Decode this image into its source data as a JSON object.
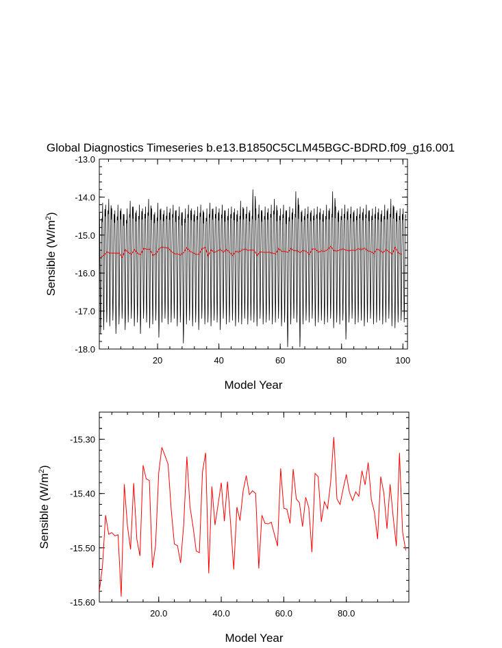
{
  "title": "Global Diagnostics Timeseries b.e13.B1850C5CLM45BGC-BDRD.f09_g16.001",
  "chart_data": [
    {
      "type": "line",
      "xlabel": "Model Year",
      "ylabel": "Sensible (W/m",
      "ylabel_sup": "2",
      "ylabel_end": ")",
      "xlim": [
        1,
        101.5
      ],
      "ylim": [
        -18.0,
        -13.0
      ],
      "xticks": [
        20,
        40,
        60,
        80,
        100
      ],
      "xtick_labels": [
        "20",
        "40",
        "60",
        "80",
        "100"
      ],
      "yticks": [
        -18.0,
        -17.0,
        -16.0,
        -15.0,
        -14.0,
        -13.0
      ],
      "ytick_labels": [
        "-18.0",
        "-17.0",
        "-16.0",
        "-15.0",
        "-14.0",
        "-13.0"
      ],
      "series": [
        {
          "color": "#000000",
          "description": "monthly values, annual cycle",
          "monthly_max": [
            -14.4,
            -14.15,
            -14.2,
            -14.05,
            -14.3,
            -14.35,
            -14.2,
            -14.3,
            -14.45,
            -14.3,
            -14.1,
            -14.25,
            -14.35,
            -14.2,
            -14.3,
            -14.25,
            -14.05,
            -14.3,
            -14.4,
            -14.15,
            -14.3,
            -14.35,
            -14.25,
            -14.3,
            -14.2,
            -14.35,
            -14.25,
            -14.4,
            -14.3,
            -14.2,
            -14.3,
            -14.35,
            -14.25,
            -14.2,
            -14.4,
            -14.3,
            -14.15,
            -14.3,
            -14.25,
            -14.3,
            -14.2,
            -14.35,
            -14.3,
            -14.25,
            -14.3,
            -14.35,
            -14.1,
            -14.3,
            -14.25,
            -14.35,
            -13.8,
            -14.3,
            -14.2,
            -14.35,
            -14.25,
            -14.3,
            -14.2,
            -14.05,
            -14.35,
            -14.3,
            -14.2,
            -14.35,
            -14.25,
            -14.3,
            -13.85,
            -14.2,
            -14.35,
            -14.3,
            -14.25,
            -14.35,
            -14.3,
            -14.25,
            -14.3,
            -14.35,
            -14.2,
            -14.3,
            -13.85,
            -14.25,
            -14.35,
            -14.3,
            -14.2,
            -14.3,
            -14.25,
            -14.35,
            -14.3,
            -14.25,
            -14.3,
            -14.2,
            -14.35,
            -14.3,
            -14.25,
            -14.3,
            -14.35,
            -14.2,
            -14.3,
            -14.05,
            -14.25,
            -14.35,
            -14.3,
            -14.3
          ],
          "monthly_min": [
            -17.6,
            -17.5,
            -17.3,
            -17.4,
            -17.25,
            -17.6,
            -17.35,
            -17.2,
            -17.5,
            -17.3,
            -17.2,
            -17.4,
            -17.3,
            -17.6,
            -17.2,
            -17.3,
            -17.45,
            -17.35,
            -17.25,
            -17.7,
            -17.3,
            -17.2,
            -17.35,
            -17.3,
            -17.2,
            -17.4,
            -17.3,
            -17.85,
            -17.35,
            -17.25,
            -17.4,
            -17.3,
            -17.5,
            -17.2,
            -17.35,
            -17.3,
            -17.4,
            -17.25,
            -17.3,
            -17.5,
            -17.2,
            -17.35,
            -17.3,
            -17.25,
            -17.4,
            -17.3,
            -17.35,
            -17.2,
            -17.35,
            -17.25,
            -17.3,
            -17.4,
            -17.2,
            -17.35,
            -17.3,
            -17.25,
            -17.35,
            -17.3,
            -17.2,
            -17.4,
            -17.3,
            -17.95,
            -17.35,
            -17.2,
            -17.3,
            -17.95,
            -17.35,
            -17.25,
            -17.3,
            -17.2,
            -17.4,
            -17.3,
            -17.25,
            -17.35,
            -17.3,
            -17.2,
            -17.45,
            -17.3,
            -17.35,
            -17.25,
            -17.75,
            -17.3,
            -17.2,
            -17.35,
            -17.3,
            -17.25,
            -17.4,
            -17.3,
            -17.2,
            -17.35,
            -17.3,
            -17.25,
            -17.35,
            -17.3,
            -17.2,
            -17.4,
            -17.45,
            -17.3,
            -17.25,
            -17.3
          ]
        },
        {
          "color": "#ff0000",
          "description": "annual mean",
          "values": [
            -15.58,
            -15.535,
            -15.44,
            -15.475,
            -15.472,
            -15.478,
            -15.476,
            -15.59,
            -15.383,
            -15.46,
            -15.503,
            -15.381,
            -15.484,
            -15.515,
            -15.348,
            -15.373,
            -15.376,
            -15.537,
            -15.495,
            -15.362,
            -15.315,
            -15.33,
            -15.346,
            -15.43,
            -15.493,
            -15.496,
            -15.528,
            -15.457,
            -15.332,
            -15.424,
            -15.462,
            -15.506,
            -15.509,
            -15.36,
            -15.325,
            -15.547,
            -15.387,
            -15.458,
            -15.42,
            -15.38,
            -15.451,
            -15.378,
            -15.456,
            -15.54,
            -15.425,
            -15.45,
            -15.395,
            -15.367,
            -15.402,
            -15.395,
            -15.4,
            -15.538,
            -15.44,
            -15.455,
            -15.456,
            -15.453,
            -15.475,
            -15.497,
            -15.354,
            -15.427,
            -15.429,
            -15.455,
            -15.355,
            -15.41,
            -15.417,
            -15.461,
            -15.407,
            -15.426,
            -15.508,
            -15.363,
            -15.369,
            -15.452,
            -15.415,
            -15.428,
            -15.378,
            -15.296,
            -15.41,
            -15.42,
            -15.391,
            -15.365,
            -15.398,
            -15.413,
            -15.397,
            -15.405,
            -15.358,
            -15.384,
            -15.343,
            -15.411,
            -15.435,
            -15.484,
            -15.369,
            -15.399,
            -15.465,
            -15.383,
            -15.444,
            -15.497,
            -15.325,
            -15.471,
            -15.505
          ]
        }
      ]
    },
    {
      "type": "line",
      "xlabel": "Model Year",
      "ylabel": "Sensible (W/m",
      "ylabel_sup": "2",
      "ylabel_end": ")",
      "xlim": [
        1,
        100
      ],
      "ylim": [
        -15.6,
        -15.25
      ],
      "xticks": [
        20,
        40,
        60,
        80
      ],
      "xtick_labels": [
        "20.0",
        "40.0",
        "60.0",
        "80.0"
      ],
      "yticks": [
        -15.6,
        -15.5,
        -15.4,
        -15.3
      ],
      "ytick_labels": [
        "-15.60",
        "-15.50",
        "-15.40",
        "-15.30"
      ],
      "series": [
        {
          "color": "#ff0000",
          "values_ref": 1
        }
      ]
    }
  ]
}
